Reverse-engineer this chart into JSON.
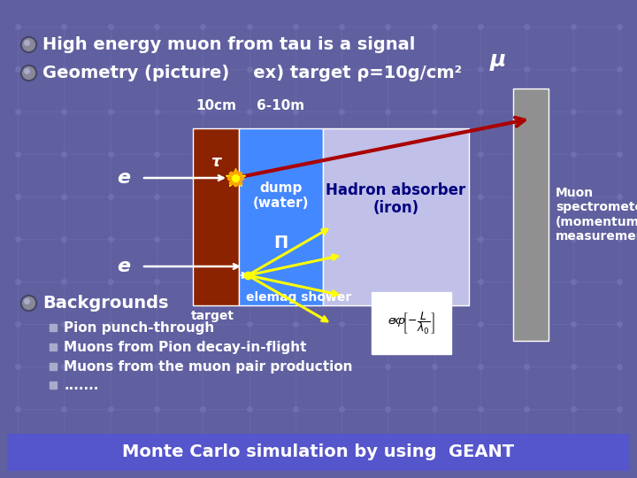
{
  "bg_color": "#6060a0",
  "title1": "High energy muon from tau is a signal",
  "title2": "Geometry (picture)    ex) target ρ=10g/cm²",
  "label_10cm": "10cm",
  "label_610m": "6-10m",
  "target_color": "#8B2200",
  "dump_color": "#4488FF",
  "hadron_color": "#C0C0E8",
  "spectrometer_color": "#909090",
  "mu_label": "μ",
  "tau_label": "τ",
  "dump_label": "dump\n(water)",
  "hadron_label": "Hadron absorber\n(iron)",
  "pi_label": "Π",
  "elemag_label": "elemag shower",
  "muon_spec_label": "Muon\nspectrometer\n(momentum\nmeasurement)",
  "backgrounds_title": "Backgrounds",
  "bg_items": [
    "Pion punch-through",
    "Muons from Pion decay-in-flight",
    "Muons from the muon pair production",
    "......."
  ],
  "bottom_banner_color": "#5555CC",
  "bottom_text": "Monte Carlo simulation by using  GEANT",
  "bottom_text_color": "#FFFFFF",
  "white": "#FFFFFF",
  "yellow": "#FFFF00",
  "red_arrow_color": "#AA0000",
  "text_color": "#FFFFFF",
  "dark_blue": "#000080"
}
